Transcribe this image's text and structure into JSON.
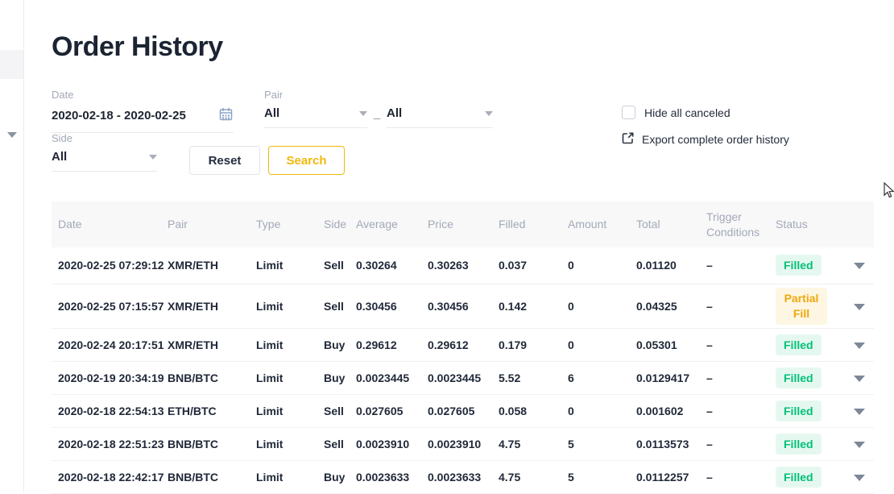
{
  "title": "Order History",
  "filters": {
    "date": {
      "label": "Date",
      "value": "2020-02-18 - 2020-02-25"
    },
    "pair": {
      "label": "Pair",
      "base_value": "All",
      "separator": "_",
      "quote_value": "All"
    },
    "side": {
      "label": "Side",
      "value": "All"
    },
    "buttons": {
      "reset": "Reset",
      "search": "Search"
    },
    "hide_canceled": {
      "label": "Hide all canceled",
      "checked": false
    },
    "export": {
      "label": "Export complete order history"
    }
  },
  "table": {
    "columns": [
      "Date",
      "Pair",
      "Type",
      "Side",
      "Average",
      "Price",
      "Filled",
      "Amount",
      "Total",
      "Trigger Conditions",
      "Status"
    ],
    "rows": [
      {
        "date": "2020-02-25 07:29:12",
        "pair": "XMR/ETH",
        "type": "Limit",
        "side": "Sell",
        "average": "0.30264",
        "price": "0.30263",
        "filled": "0.037",
        "amount": "0",
        "total": "0.01120",
        "trigger": "–",
        "status": "Filled"
      },
      {
        "date": "2020-02-25 07:15:57",
        "pair": "XMR/ETH",
        "type": "Limit",
        "side": "Sell",
        "average": "0.30456",
        "price": "0.30456",
        "filled": "0.142",
        "amount": "0",
        "total": "0.04325",
        "trigger": "–",
        "status": "Partial Fill"
      },
      {
        "date": "2020-02-24 20:17:51",
        "pair": "XMR/ETH",
        "type": "Limit",
        "side": "Buy",
        "average": "0.29612",
        "price": "0.29612",
        "filled": "0.179",
        "amount": "0",
        "total": "0.05301",
        "trigger": "–",
        "status": "Filled"
      },
      {
        "date": "2020-02-19 20:34:19",
        "pair": "BNB/BTC",
        "type": "Limit",
        "side": "Buy",
        "average": "0.0023445",
        "price": "0.0023445",
        "filled": "5.52",
        "amount": "6",
        "total": "0.0129417",
        "trigger": "–",
        "status": "Filled"
      },
      {
        "date": "2020-02-18 22:54:13",
        "pair": "ETH/BTC",
        "type": "Limit",
        "side": "Sell",
        "average": "0.027605",
        "price": "0.027605",
        "filled": "0.058",
        "amount": "0",
        "total": "0.001602",
        "trigger": "–",
        "status": "Filled"
      },
      {
        "date": "2020-02-18 22:51:23",
        "pair": "BNB/BTC",
        "type": "Limit",
        "side": "Sell",
        "average": "0.0023910",
        "price": "0.0023910",
        "filled": "4.75",
        "amount": "5",
        "total": "0.0113573",
        "trigger": "–",
        "status": "Filled"
      },
      {
        "date": "2020-02-18 22:42:17",
        "pair": "BNB/BTC",
        "type": "Limit",
        "side": "Buy",
        "average": "0.0023633",
        "price": "0.0023633",
        "filled": "4.75",
        "amount": "5",
        "total": "0.0112257",
        "trigger": "–",
        "status": "Filled"
      }
    ]
  },
  "colors": {
    "buy": "#02c077",
    "sell": "#e61e6e",
    "accent_gold": "#f0b90b",
    "filled_badge_text": "#02c077",
    "filled_badge_bg": "#e5f8f0",
    "partial_badge_text": "#f0a80d",
    "partial_badge_bg": "#fdf6e2"
  }
}
